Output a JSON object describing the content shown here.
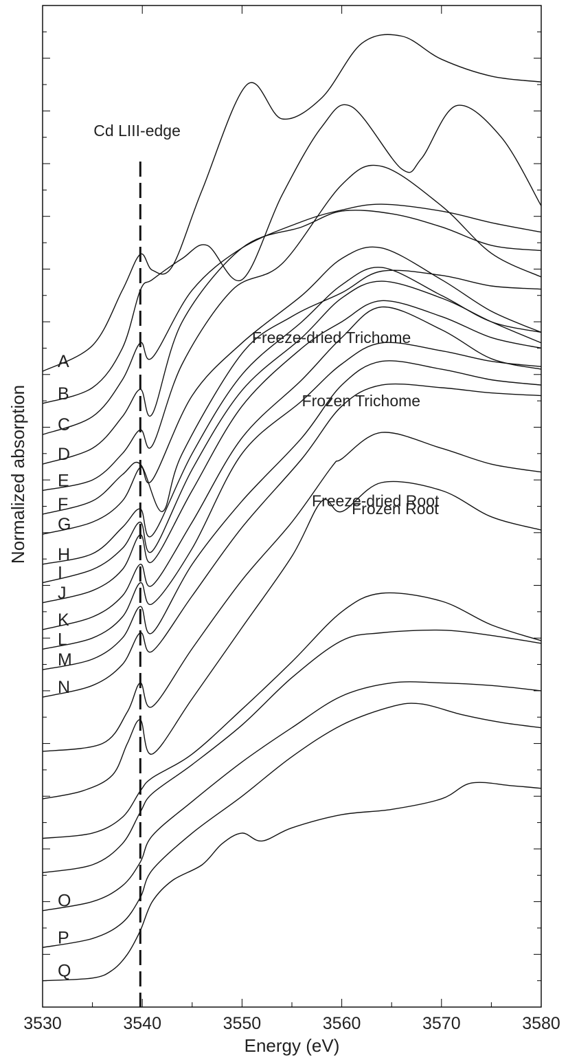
{
  "chart_data": {
    "type": "line",
    "title": "",
    "xlabel": "Energy (eV)",
    "ylabel": "Normalized absorption",
    "xlim": [
      3530,
      3580
    ],
    "xticks": [
      3530,
      3540,
      3550,
      3560,
      3570,
      3580
    ],
    "grid": false,
    "edge_annotation": {
      "text": "Cd LIII-edge",
      "energy": 3539.8
    },
    "series": [
      {
        "name": "A",
        "x": [
          3530,
          3535,
          3538,
          3539.8,
          3541,
          3543,
          3546,
          3550.5,
          3554,
          3558,
          3562,
          3566,
          3570,
          3575,
          3580
        ],
        "y": [
          1.06,
          1.55,
          2.6,
          3.28,
          2.98,
          3.05,
          4.5,
          6.5,
          5.85,
          6.25,
          7.28,
          7.42,
          6.98,
          6.66,
          6.55
        ]
      },
      {
        "name": "B",
        "x": [
          3530,
          3535,
          3538,
          3539.8,
          3541,
          3544,
          3546.5,
          3550,
          3554,
          3558,
          3561,
          3566,
          3568,
          3571.5,
          3576,
          3580
        ],
        "y": [
          0.45,
          0.75,
          1.5,
          2.6,
          2.8,
          3.2,
          3.45,
          2.8,
          4.4,
          5.7,
          6.08,
          4.9,
          5.1,
          6.1,
          5.5,
          4.2
        ]
      },
      {
        "name": "C",
        "x": [
          3530,
          3535,
          3538,
          3539.8,
          3541,
          3545,
          3550,
          3556,
          3560,
          3564,
          3570,
          3575,
          3580
        ],
        "y": [
          -0.14,
          0.2,
          0.9,
          1.6,
          1.32,
          2.6,
          3.4,
          3.9,
          4.12,
          4.23,
          4.1,
          3.88,
          3.7
        ]
      },
      {
        "name": "D",
        "x": [
          3530,
          3535,
          3538,
          3539.8,
          3541,
          3544,
          3550,
          3556,
          3560,
          3565,
          3570,
          3575,
          3580
        ],
        "y": [
          -0.7,
          -0.4,
          0.2,
          0.72,
          0.25,
          2.0,
          3.4,
          3.8,
          4.1,
          4.05,
          3.8,
          3.45,
          3.35
        ]
      },
      {
        "name": "E",
        "x": [
          3530,
          3535,
          3538,
          3539.8,
          3541,
          3544,
          3549,
          3554,
          3560,
          3564,
          3570,
          3575,
          3580
        ],
        "y": [
          -1.2,
          -1.0,
          -0.5,
          -0.05,
          -0.35,
          1.2,
          2.6,
          3.1,
          4.6,
          4.95,
          4.2,
          3.3,
          2.85
        ]
      },
      {
        "name": "F",
        "x": [
          3530,
          3535,
          3538,
          3539.8,
          3542,
          3544,
          3550,
          3555,
          3560,
          3564,
          3570,
          3575,
          3580
        ],
        "y": [
          -1.65,
          -1.4,
          -0.9,
          -0.7,
          -1.6,
          -0.5,
          1.4,
          2.1,
          2.55,
          2.96,
          2.88,
          2.68,
          2.62
        ]
      },
      {
        "name": "G",
        "x": [
          3530,
          3535,
          3538,
          3539.8,
          3541,
          3545,
          3550,
          3556,
          3560,
          3564,
          3570,
          3575,
          3580
        ],
        "y": [
          -2.03,
          -1.8,
          -1.4,
          -0.76,
          -1.0,
          0.6,
          1.6,
          2.5,
          3.2,
          3.4,
          2.8,
          2.2,
          1.8
        ]
      },
      {
        "name": "H",
        "x": [
          3530,
          3535,
          3538,
          3539.8,
          3541,
          3545,
          3550,
          3556,
          3560,
          3564,
          3570,
          3575,
          3580
        ],
        "y": [
          -2.6,
          -2.4,
          -1.9,
          -1.55,
          -2.05,
          -0.5,
          1.0,
          2.0,
          2.7,
          3.03,
          2.5,
          2.0,
          1.8
        ]
      },
      {
        "name": "I",
        "x": [
          3530,
          3535,
          3538,
          3539.8,
          3541,
          3545,
          3550,
          3556,
          3560,
          3564,
          3570,
          3575,
          3580
        ],
        "y": [
          -2.95,
          -2.7,
          -2.3,
          -1.8,
          -2.35,
          -0.8,
          0.7,
          1.7,
          2.45,
          2.77,
          2.45,
          2.0,
          1.6
        ]
      },
      {
        "name": "J",
        "x": [
          3530,
          3535,
          3538,
          3539.8,
          3541,
          3545,
          3550,
          3556,
          3560,
          3564,
          3570,
          3575,
          3580
        ],
        "y": [
          -3.33,
          -3.1,
          -2.7,
          -2.04,
          -2.55,
          -1.2,
          0.4,
          1.5,
          2.0,
          2.4,
          2.1,
          1.7,
          1.5
        ]
      },
      {
        "name": "K",
        "x": [
          3530,
          3535,
          3538,
          3539.8,
          3541,
          3545,
          3550,
          3556,
          3560,
          3564,
          3570,
          3575,
          3580
        ],
        "y": [
          -3.84,
          -3.6,
          -3.2,
          -2.6,
          -3.0,
          -1.8,
          -0.2,
          0.9,
          1.7,
          2.28,
          1.85,
          1.3,
          1.1
        ]
      },
      {
        "name": "L",
        "x": [
          3530,
          3535,
          3538,
          3539.8,
          3541,
          3545,
          3550,
          3556,
          3560,
          3564,
          3570,
          3575,
          3580
        ],
        "y": [
          -4.21,
          -4.0,
          -3.6,
          -2.95,
          -3.35,
          -2.3,
          -0.5,
          0.5,
          1.2,
          1.6,
          1.45,
          1.25,
          1.15
        ]
      },
      {
        "name": "M",
        "x": [
          3530,
          3535,
          3538,
          3539.8,
          3541,
          3545,
          3550,
          3556,
          3560,
          3564,
          3570,
          3575,
          3580
        ],
        "y": [
          -4.6,
          -4.4,
          -4.0,
          -3.4,
          -3.9,
          -2.6,
          -1.4,
          -0.2,
          0.8,
          1.25,
          1.1,
          0.9,
          0.8
        ]
      },
      {
        "name": "N",
        "x": [
          3530,
          3535,
          3538,
          3539.8,
          3541,
          3545,
          3550,
          3556,
          3560,
          3564,
          3570,
          3575,
          3580
        ],
        "y": [
          -5.12,
          -4.9,
          -4.5,
          -3.9,
          -4.25,
          -3.2,
          -1.9,
          -0.6,
          0.4,
          0.8,
          0.75,
          0.65,
          0.6
        ]
      },
      {
        "name": "Freeze-dried Trichome",
        "x": [
          3530,
          3536,
          3538.5,
          3539.8,
          3541,
          3545,
          3550,
          3555,
          3559,
          3560,
          3564,
          3570,
          3575,
          3580
        ],
        "y": [
          -6.15,
          -6.0,
          -5.4,
          -4.85,
          -5.3,
          -4.2,
          -2.9,
          -1.8,
          -0.75,
          -0.6,
          -0.1,
          -0.4,
          -0.7,
          -0.85
        ]
      },
      {
        "name": "Frozen Trichome",
        "x": [
          3530,
          3534,
          3537,
          3538.5,
          3539.8,
          3541,
          3545,
          3550,
          3555,
          3558,
          3560,
          3564,
          3570,
          3575,
          3580
        ],
        "y": [
          -7.05,
          -6.9,
          -6.6,
          -6.0,
          -5.55,
          -6.2,
          -5.15,
          -3.8,
          -2.45,
          -1.4,
          -1.6,
          -1.05,
          -1.2,
          -1.7,
          -1.95
        ]
      },
      {
        "name": "Freeze-dried Root",
        "x": [
          3530,
          3535,
          3538,
          3539.8,
          3541,
          3545,
          3550,
          3555,
          3560,
          3564,
          3570,
          3575,
          3580
        ],
        "y": [
          -7.8,
          -7.7,
          -7.4,
          -6.9,
          -6.65,
          -6.2,
          -5.35,
          -4.45,
          -3.5,
          -3.15,
          -3.3,
          -3.75,
          -4.05
        ]
      },
      {
        "name": "Frozen Root",
        "x": [
          3530,
          3535,
          3538,
          3539.8,
          3541,
          3545,
          3550,
          3555,
          3560,
          3564,
          3570,
          3575,
          3580
        ],
        "y": [
          -8.45,
          -8.3,
          -7.9,
          -7.3,
          -6.95,
          -6.4,
          -5.65,
          -4.75,
          -4.05,
          -3.9,
          -3.85,
          -3.95,
          -4.1
        ]
      },
      {
        "name": "O",
        "x": [
          3530,
          3535,
          3538,
          3539.8,
          3541,
          3545,
          3550,
          3555,
          3560,
          3565,
          3570,
          3575,
          3580
        ],
        "y": [
          -9.17,
          -9.0,
          -8.7,
          -8.25,
          -7.75,
          -7.1,
          -6.35,
          -5.7,
          -5.1,
          -4.85,
          -4.85,
          -4.9,
          -5.0
        ]
      },
      {
        "name": "P",
        "x": [
          3530,
          3535,
          3538,
          3539.8,
          3541,
          3545,
          3550,
          3555,
          3560,
          3565,
          3568,
          3572,
          3576,
          3580
        ],
        "y": [
          -9.87,
          -9.7,
          -9.4,
          -8.92,
          -8.4,
          -7.7,
          -7.0,
          -6.25,
          -5.65,
          -5.3,
          -5.25,
          -5.45,
          -5.6,
          -5.7
        ]
      },
      {
        "name": "Q",
        "x": [
          3530,
          3535,
          3537,
          3538.5,
          3539.8,
          3541,
          3543,
          3546,
          3548,
          3550,
          3552,
          3555,
          3560,
          3565,
          3570,
          3573,
          3577,
          3580
        ],
        "y": [
          -10.5,
          -10.45,
          -10.3,
          -10.0,
          -9.55,
          -9.0,
          -8.6,
          -8.3,
          -7.9,
          -7.7,
          -7.85,
          -7.6,
          -7.35,
          -7.25,
          -7.05,
          -6.75,
          -6.8,
          -6.85
        ]
      }
    ]
  }
}
